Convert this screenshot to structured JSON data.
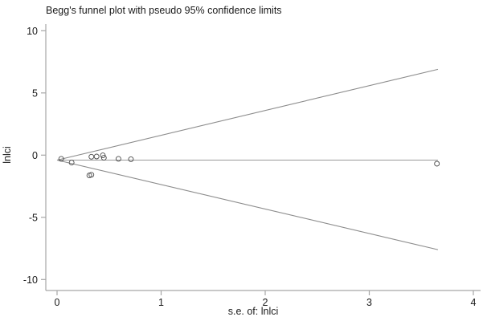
{
  "title": "Begg's funnel plot with pseudo 95% confidence limits",
  "chart_data": {
    "type": "scatter",
    "title": "Begg's funnel plot with pseudo 95% confidence limits",
    "xlabel": "s.e. of: lnlci",
    "ylabel": "lnlci",
    "xlim": [
      0,
      4
    ],
    "ylim": [
      -10,
      10
    ],
    "x_ticks": [
      0,
      1,
      2,
      3,
      4
    ],
    "y_ticks": [
      10,
      5,
      0,
      -5,
      -10
    ],
    "grid": false,
    "legend": "none",
    "points": [
      {
        "se": 0.04,
        "lnlci": -0.3
      },
      {
        "se": 0.14,
        "lnlci": -0.6
      },
      {
        "se": 0.31,
        "lnlci": -1.63
      },
      {
        "se": 0.33,
        "lnlci": -1.58
      },
      {
        "se": 0.33,
        "lnlci": -0.13
      },
      {
        "se": 0.38,
        "lnlci": -0.11
      },
      {
        "se": 0.44,
        "lnlci": -0.02
      },
      {
        "se": 0.45,
        "lnlci": -0.21
      },
      {
        "se": 0.59,
        "lnlci": -0.3
      },
      {
        "se": 0.71,
        "lnlci": -0.33
      },
      {
        "se": 3.65,
        "lnlci": -0.69
      }
    ],
    "funnel": {
      "pooled_estimate": -0.4,
      "se_start": 0,
      "se_end": 3.66,
      "upper_limit_at_end": 6.9,
      "lower_limit_at_end": -7.6
    },
    "colors": {
      "axis": "#a6a6a6",
      "funnel_line": "#8c8c8c",
      "pooled_line": "#999999",
      "marker_stroke": "#4a4a4a",
      "text": "#1a1a1a",
      "background": "#ffffff"
    }
  }
}
